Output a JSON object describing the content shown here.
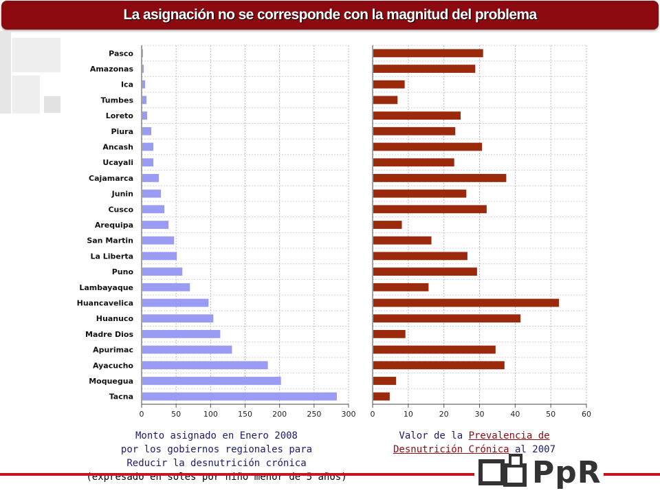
{
  "header": {
    "title": "La asignación no se corresponde con la magnitud del problema"
  },
  "chart_data": [
    {
      "type": "bar",
      "orientation": "horizontal",
      "color": "#9a9cf3",
      "categories": [
        "Pasco",
        "Amazonas",
        "Ica",
        "Tumbes",
        "Loreto",
        "Piura",
        "Ancash",
        "Ucayali",
        "Cajamarca",
        "Junin",
        "Cusco",
        "Arequipa",
        "San Martin",
        "La Liberta",
        "Puno",
        "Lambayaque",
        "Huancavelica",
        "Huanuco",
        "Madre Dios",
        "Apurimac",
        "Ayacucho",
        "Moquegua",
        "Tacna"
      ],
      "values": [
        2,
        3,
        5,
        7,
        8,
        14,
        17,
        17,
        25,
        28,
        33,
        39,
        47,
        51,
        59,
        70,
        97,
        104,
        114,
        131,
        183,
        202,
        283
      ],
      "xlim": [
        0,
        300
      ],
      "xticks": [
        "0",
        "50",
        "100",
        "150",
        "200",
        "250",
        "300"
      ],
      "grid": true,
      "title": "Monto asignado en Enero 2008 por los gobiernos regionales para Reducir la desnutrición crónica (expresado en soles por niño menor de 5 años)"
    },
    {
      "type": "bar",
      "orientation": "horizontal",
      "color": "#9b2a0c",
      "categories": [
        "Pasco",
        "Amazonas",
        "Ica",
        "Tumbes",
        "Loreto",
        "Piura",
        "Ancash",
        "Ucayali",
        "Cajamarca",
        "Junin",
        "Cusco",
        "Arequipa",
        "San Martin",
        "La Liberta",
        "Puno",
        "Lambayaque",
        "Huancavelica",
        "Huanuco",
        "Madre Dios",
        "Apurimac",
        "Ayacucho",
        "Moquegua",
        "Tacna"
      ],
      "values": [
        31,
        28.8,
        9,
        7,
        24.7,
        23.2,
        30.7,
        22.9,
        37.5,
        26.3,
        32,
        8.2,
        16.5,
        26.6,
        29.3,
        15.7,
        52.3,
        41.5,
        9.2,
        34.5,
        37,
        6.6,
        4.8
      ],
      "xlim": [
        0,
        60
      ],
      "xticks": [
        "0",
        "10",
        "20",
        "30",
        "40",
        "50",
        "60"
      ],
      "grid": true,
      "title": "Valor de la Prevalencia de Desnutrición Crónica al 2007"
    }
  ],
  "captions": {
    "left": {
      "line1": "Monto asignado en Enero 2008",
      "line2": "por los gobiernos regionales para",
      "line3": "Reducir la desnutrición crónica",
      "line4": "(expresado en soles por niño menor de 5 años)"
    },
    "right": {
      "pre": "Valor de la ",
      "link1": "Prevalencia de ",
      "link2": "Desnutrición Crónica",
      "post": " al 2007"
    }
  },
  "logo": {
    "text": "PpR"
  }
}
